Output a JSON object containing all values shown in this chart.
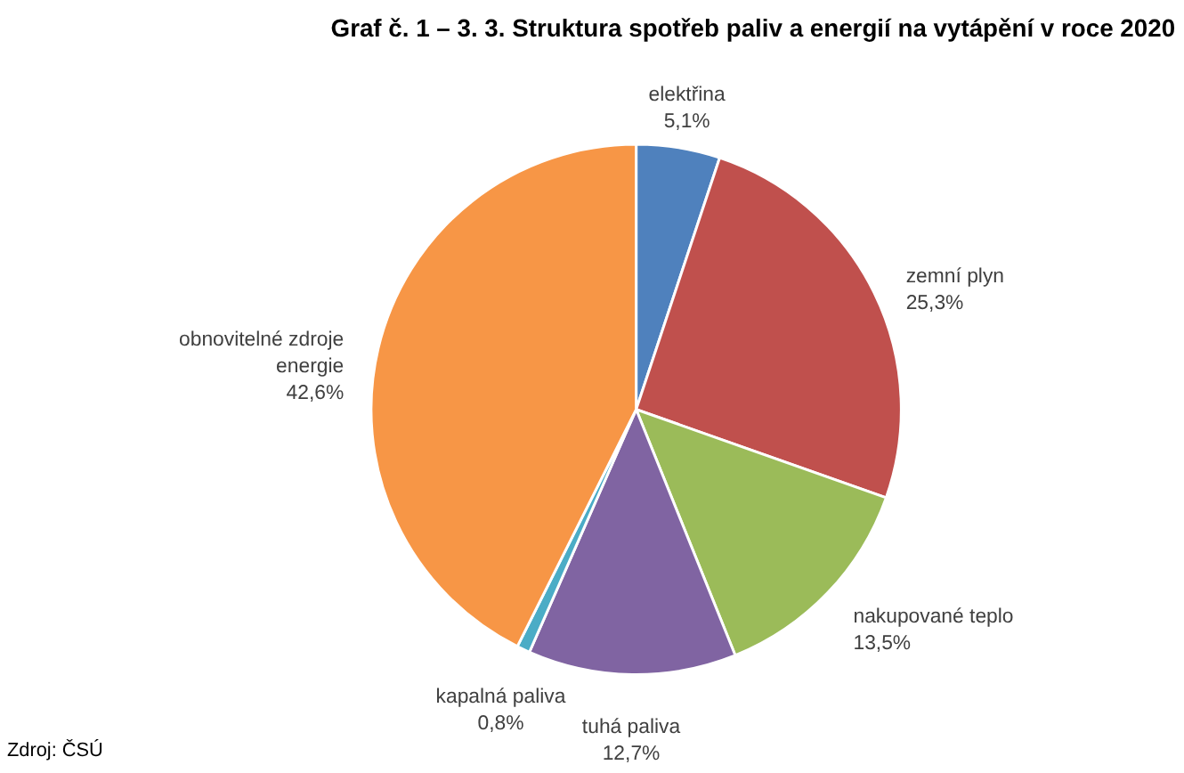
{
  "chart_data": {
    "type": "pie",
    "title": "Graf č. 1 – 3. 3. Struktura spotřeb paliv a energií na vytápění v roce 2020",
    "categories": [
      "elektřina",
      "zemní plyn",
      "nakupované teplo",
      "tuhá paliva",
      "kapalná paliva",
      "obnovitelné zdroje energie"
    ],
    "values": [
      5.1,
      25.3,
      13.5,
      12.7,
      0.8,
      42.6
    ],
    "colors": [
      "#4f81bd",
      "#c0504d",
      "#9bbb59",
      "#8064a2",
      "#4bacc6",
      "#f79646"
    ],
    "value_labels": [
      "5,1%",
      "25,3%",
      "13,5%",
      "12,7%",
      "0,8%",
      "42,6%"
    ],
    "annotations": [
      "Zdroj: ČSÚ"
    ]
  }
}
